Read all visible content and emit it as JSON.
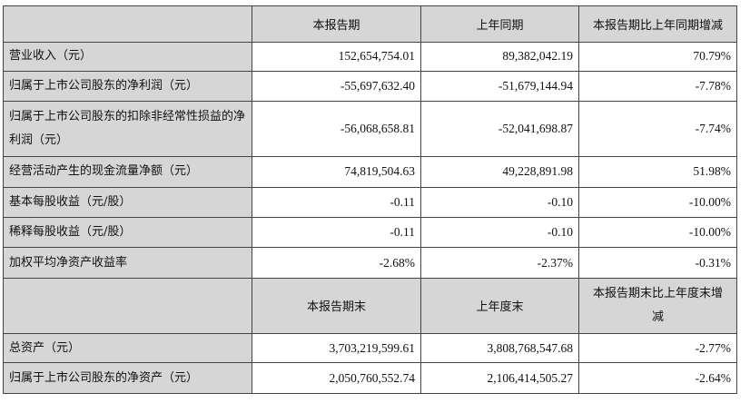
{
  "table": {
    "header": {
      "col1": "本报告期",
      "col2": "上年同期",
      "col3": "本报告期比上年同期增减"
    },
    "rows": [
      {
        "label": "营业收入（元）",
        "current": "152,654,754.01",
        "previous": "89,382,042.19",
        "change": "70.79%"
      },
      {
        "label": "归属于上市公司股东的净利润（元）",
        "current": "-55,697,632.40",
        "previous": "-51,679,144.94",
        "change": "-7.78%"
      },
      {
        "label": "归属于上市公司股东的扣除非经常性损益的净利润（元）",
        "current": "-56,068,658.81",
        "previous": "-52,041,698.87",
        "change": "-7.74%"
      },
      {
        "label": "经营活动产生的现金流量净额（元）",
        "current": "74,819,504.63",
        "previous": "49,228,891.98",
        "change": "51.98%"
      },
      {
        "label": "基本每股收益（元/股）",
        "current": "-0.11",
        "previous": "-0.10",
        "change": "-10.00%"
      },
      {
        "label": "稀释每股收益（元/股）",
        "current": "-0.11",
        "previous": "-0.10",
        "change": "-10.00%"
      },
      {
        "label": "加权平均净资产收益率",
        "current": "-2.68%",
        "previous": "-2.37%",
        "change": "-0.31%"
      }
    ],
    "header2": {
      "col1": "本报告期末",
      "col2": "上年度末",
      "col3": "本报告期末比上年度末增减"
    },
    "rows2": [
      {
        "label": "总资产（元）",
        "current": "3,703,219,599.61",
        "previous": "3,808,768,547.68",
        "change": "-2.77%"
      },
      {
        "label": "归属于上市公司股东的净资产（元）",
        "current": "2,050,760,552.74",
        "previous": "2,106,414,505.27",
        "change": "-2.64%"
      }
    ]
  }
}
